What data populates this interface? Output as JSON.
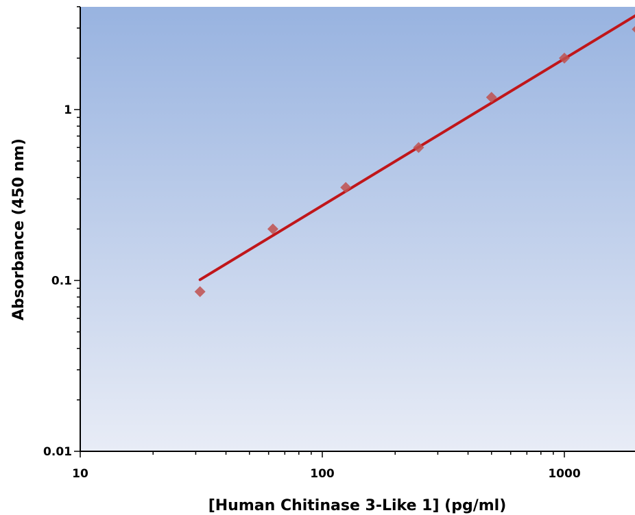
{
  "chart_data": {
    "type": "scatter",
    "title": "",
    "xlabel": "[Human Chitinase 3-Like 1] (pg/ml)",
    "ylabel": "Absorbance (450 nm)",
    "x_scale": "log",
    "y_scale": "log",
    "xlim": [
      10,
      2000
    ],
    "ylim": [
      0.01,
      4
    ],
    "x_ticks": [
      {
        "value": 10,
        "label": "10"
      },
      {
        "value": 100,
        "label": "100"
      },
      {
        "value": 1000,
        "label": "1000"
      }
    ],
    "y_ticks": [
      {
        "value": 0.01,
        "label": "0.01"
      },
      {
        "value": 0.1,
        "label": "0.1"
      },
      {
        "value": 1,
        "label": "1"
      }
    ],
    "grid": false,
    "series": [
      {
        "marker": "diamond",
        "color": "#c0504d",
        "x": [
          31.25,
          62.5,
          125,
          250,
          500,
          1000,
          2000
        ],
        "y": [
          0.086,
          0.2,
          0.35,
          0.6,
          1.18,
          2.0,
          2.95
        ]
      }
    ],
    "fit_line": {
      "color": "#c0161a",
      "x": [
        31.25,
        2000
      ],
      "y": [
        0.101,
        3.6
      ]
    },
    "colors": {
      "plot_bg_top": "#98b3e0",
      "plot_bg_bottom": "#e8ecf6"
    }
  }
}
